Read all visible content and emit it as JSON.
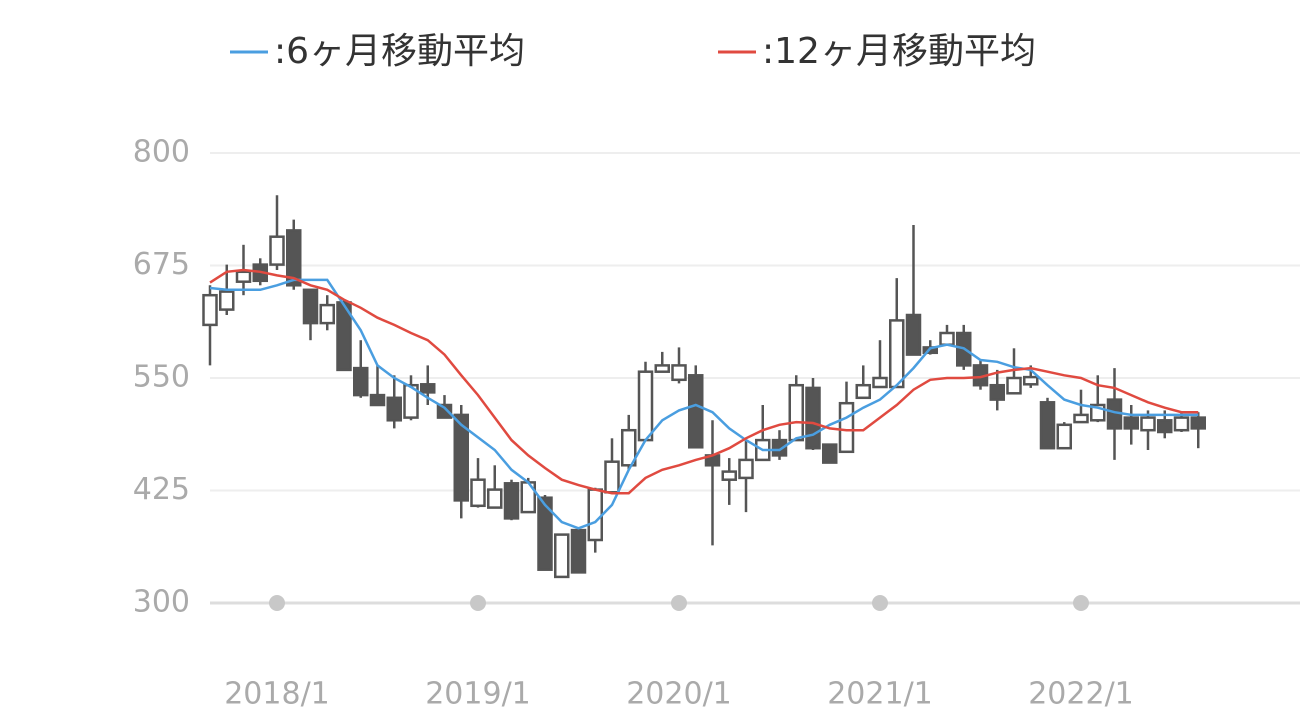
{
  "chart_data": {
    "type": "candlestick",
    "categories": [
      null,
      null,
      null,
      null,
      "2018/1",
      null,
      null,
      null,
      null,
      null,
      null,
      null,
      null,
      null,
      null,
      null,
      "2019/1",
      null,
      null,
      null,
      null,
      null,
      null,
      null,
      null,
      null,
      null,
      null,
      "2020/1",
      null,
      null,
      null,
      null,
      null,
      null,
      null,
      null,
      null,
      null,
      null,
      "2021/1",
      null,
      null,
      null,
      null,
      null,
      null,
      null,
      null,
      null,
      null,
      null,
      "2022/1",
      null,
      null,
      null,
      null,
      null,
      null,
      null
    ],
    "open": [
      609,
      626,
      657,
      676,
      676,
      714,
      648,
      611,
      634,
      561,
      531,
      528,
      506,
      543,
      520,
      509,
      408,
      406,
      433,
      401,
      417,
      329,
      381,
      370,
      423,
      453,
      481,
      557,
      548,
      553,
      464,
      437,
      439,
      459,
      481,
      481,
      539,
      476,
      468,
      528,
      540,
      540,
      620,
      584,
      587,
      600,
      564,
      542,
      533,
      543,
      523,
      472,
      501,
      503,
      526,
      506,
      492,
      503,
      492,
      506
    ],
    "high": [
      653,
      676,
      698,
      683,
      753,
      726,
      648,
      642,
      637,
      592,
      564,
      553,
      553,
      564,
      531,
      520,
      461,
      453,
      437,
      439,
      420,
      376,
      383,
      428,
      483,
      509,
      568,
      579,
      584,
      564,
      503,
      461,
      481,
      520,
      492,
      553,
      550,
      476,
      546,
      564,
      592,
      661,
      720,
      592,
      609,
      609,
      570,
      559,
      583,
      564,
      528,
      501,
      537,
      553,
      561,
      520,
      514,
      514,
      512,
      512
    ],
    "low": [
      564,
      620,
      642,
      653,
      670,
      648,
      592,
      603,
      559,
      528,
      520,
      494,
      503,
      520,
      506,
      394,
      406,
      406,
      392,
      401,
      337,
      329,
      334,
      356,
      423,
      448,
      481,
      557,
      544,
      473,
      364,
      409,
      401,
      459,
      459,
      481,
      470,
      456,
      468,
      528,
      540,
      540,
      576,
      576,
      587,
      559,
      537,
      514,
      533,
      539,
      472,
      472,
      500,
      501,
      459,
      476,
      470,
      483,
      490,
      472
    ],
    "close": [
      642,
      646,
      668,
      658,
      707,
      653,
      611,
      631,
      559,
      531,
      520,
      503,
      542,
      534,
      506,
      414,
      437,
      426,
      394,
      434,
      337,
      376,
      334,
      426,
      457,
      492,
      557,
      564,
      564,
      473,
      453,
      446,
      459,
      481,
      464,
      542,
      472,
      456,
      522,
      542,
      550,
      614,
      576,
      578,
      600,
      564,
      542,
      526,
      550,
      551,
      472,
      498,
      509,
      520,
      494,
      494,
      506,
      490,
      506,
      494
    ],
    "series": [
      {
        "name": ":6ヶ月移動平均",
        "color": "#4a9ee0",
        "values": [
          650,
          648,
          648,
          648,
          653,
          659,
          659,
          659,
          631,
          603,
          564,
          550,
          540,
          528,
          517,
          498,
          484,
          470,
          448,
          434,
          409,
          390,
          383,
          390,
          409,
          448,
          481,
          503,
          514,
          520,
          512,
          494,
          481,
          470,
          470,
          483,
          487,
          498,
          506,
          517,
          526,
          542,
          561,
          583,
          587,
          583,
          570,
          568,
          562,
          559,
          542,
          526,
          520,
          517,
          512,
          509,
          509,
          509,
          509,
          509
        ]
      },
      {
        "name": ":12ヶ月移動平均",
        "color": "#e04a40",
        "values": [
          656,
          668,
          670,
          668,
          664,
          661,
          653,
          648,
          637,
          628,
          617,
          609,
          600,
          592,
          576,
          553,
          531,
          506,
          481,
          464,
          450,
          437,
          431,
          426,
          422,
          422,
          439,
          448,
          453,
          459,
          464,
          472,
          483,
          492,
          498,
          501,
          500,
          494,
          492,
          492,
          506,
          520,
          537,
          548,
          550,
          550,
          551,
          556,
          559,
          561,
          557,
          553,
          550,
          542,
          539,
          531,
          523,
          517,
          512,
          512
        ]
      }
    ],
    "up_color": "#ffffff",
    "down_color": "#555555",
    "edge_color": "#555555",
    "ylim": [
      300,
      800
    ],
    "yticks": [
      300,
      425,
      550,
      675,
      800
    ],
    "grid": true
  }
}
